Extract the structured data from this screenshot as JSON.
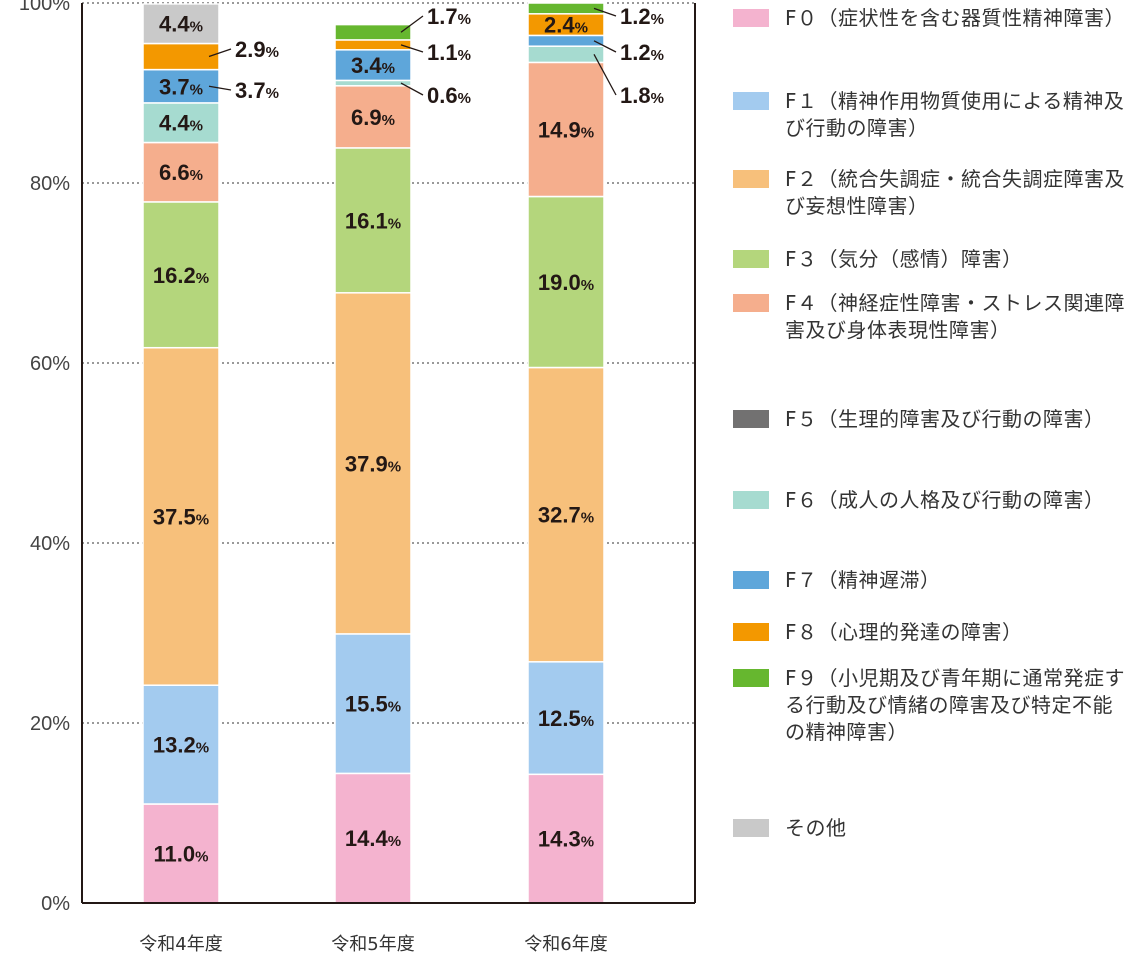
{
  "chart_data": {
    "type": "bar",
    "stacked": true,
    "categories": [
      "令和4年度",
      "令和5年度",
      "令和6年度"
    ],
    "ylim": [
      0,
      100
    ],
    "y_ticks": [
      "0%",
      "20%",
      "40%",
      "60%",
      "80%",
      "100%"
    ],
    "grid": "horizontal dotted at 20% steps",
    "legend_position": "right",
    "series": [
      {
        "name": "F０（症状性を含む器質性精神障害）",
        "color": "#f4b3cf",
        "values": [
          11.0,
          14.4,
          14.3
        ],
        "labels": [
          "11.0",
          "14.4",
          "14.3"
        ]
      },
      {
        "name": "F１（精神作用物質使用による精神及び行動の障害）",
        "color": "#a3cbef",
        "values": [
          13.2,
          15.5,
          12.5
        ],
        "labels": [
          "13.2",
          "15.5",
          "12.5"
        ]
      },
      {
        "name": "F２（統合失調症・統合失調症障害及び妄想性障害）",
        "color": "#f7c07b",
        "values": [
          37.5,
          37.9,
          32.7
        ],
        "labels": [
          "37.5",
          "37.9",
          "32.7"
        ]
      },
      {
        "name": "F３（気分（感情）障害）",
        "color": "#b4d67c",
        "values": [
          16.2,
          16.1,
          19.0
        ],
        "labels": [
          "16.2",
          "16.1",
          "19.0"
        ]
      },
      {
        "name": "F４（神経症性障害・ストレス関連障害及び身体表現性障害）",
        "color": "#f5ae8d",
        "values": [
          6.6,
          6.9,
          14.9
        ],
        "labels": [
          "6.6",
          "6.9",
          "14.9"
        ]
      },
      {
        "name": "F５（生理的障害及び行動の障害）",
        "color": "#727171",
        "values": [
          0,
          0,
          0
        ],
        "labels": [
          "",
          "",
          ""
        ]
      },
      {
        "name": "F６（成人の人格及び行動の障害）",
        "color": "#a6dbd0",
        "values": [
          4.4,
          0.6,
          1.8
        ],
        "labels": [
          "4.4",
          "0.6",
          "1.8"
        ]
      },
      {
        "name": "F７（精神遅滞）",
        "color": "#5ea6da",
        "values": [
          3.7,
          3.4,
          1.2
        ],
        "labels": [
          "3.7",
          "3.4",
          "1.2"
        ]
      },
      {
        "name": "F８（心理的発達の障害）",
        "color": "#f39800",
        "values": [
          2.9,
          1.1,
          2.4
        ],
        "labels": [
          "2.9",
          "1.1",
          "2.4"
        ]
      },
      {
        "name": "F９（小児期及び青年期に通常発症する行動及び情緒の障害及び特定不能の精神障害）",
        "color": "#66b72f",
        "values": [
          0,
          1.7,
          1.2
        ],
        "labels": [
          "",
          "1.7",
          "1.2"
        ]
      },
      {
        "name": "その他",
        "color": "#c9c9c9",
        "values": [
          4.4,
          0,
          0
        ],
        "labels": [
          "4.4",
          "",
          ""
        ]
      }
    ],
    "percent_sign": "%"
  },
  "legend": [
    {
      "color": "#f4b3cf",
      "text": "F０（症状性を含む器質性精神障害）"
    },
    {
      "color": "#a3cbef",
      "text": "F１（精神作用物質使用による精神及び行動の障害）"
    },
    {
      "color": "#f7c07b",
      "text": "F２（統合失調症・統合失調症障害及び妄想性障害）"
    },
    {
      "color": "#b4d67c",
      "text": "F３（気分（感情）障害）"
    },
    {
      "color": "#f5ae8d",
      "text": "F４（神経症性障害・ストレス関連障害及び身体表現性障害）"
    },
    {
      "color": "#727171",
      "text": "F５（生理的障害及び行動の障害）"
    },
    {
      "color": "#a6dbd0",
      "text": "F６（成人の人格及び行動の障害）"
    },
    {
      "color": "#5ea6da",
      "text": "F７（精神遅滞）"
    },
    {
      "color": "#f39800",
      "text": "F８（心理的発達の障害）"
    },
    {
      "color": "#66b72f",
      "text": "F９（小児期及び青年期に通常発症する行動及び情緒の障害及び特定不能の精神障害）"
    },
    {
      "color": "#c9c9c9",
      "text": "その他"
    }
  ]
}
